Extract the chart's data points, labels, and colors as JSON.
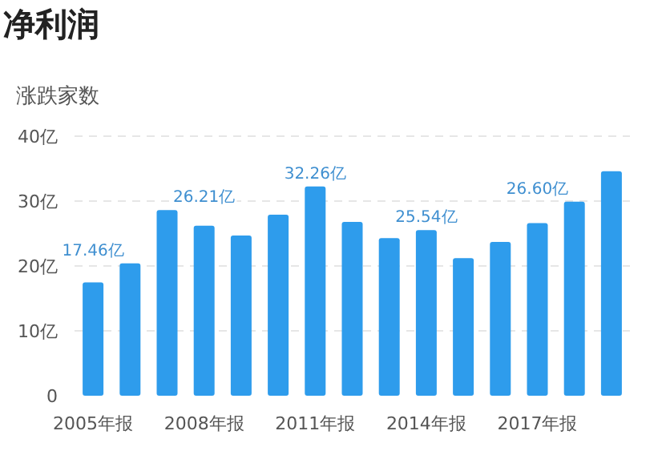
{
  "chart_data": {
    "type": "bar",
    "title": "净利润",
    "ylabel": "涨跌家数",
    "categories": [
      "2005年报",
      null,
      null,
      "2008年报",
      null,
      null,
      "2011年报",
      null,
      null,
      "2014年报",
      null,
      null,
      "2017年报",
      null,
      null
    ],
    "values": [
      17.46,
      20.4,
      28.6,
      26.21,
      24.7,
      27.9,
      32.26,
      26.8,
      24.3,
      25.54,
      21.2,
      23.7,
      26.6,
      29.9,
      34.6
    ],
    "value_labels": [
      "17.46亿",
      null,
      null,
      "26.21亿",
      null,
      null,
      "32.26亿",
      null,
      null,
      "25.54亿",
      null,
      null,
      "26.60亿",
      null,
      null
    ],
    "color": "#2e9cec",
    "ylim": [
      0,
      40
    ],
    "yticks": [
      {
        "value": 0,
        "label": "0"
      },
      {
        "value": 10,
        "label": "10亿"
      },
      {
        "value": 20,
        "label": "20亿"
      },
      {
        "value": 30,
        "label": "30亿"
      },
      {
        "value": 40,
        "label": "40亿"
      }
    ],
    "grid": "y"
  }
}
